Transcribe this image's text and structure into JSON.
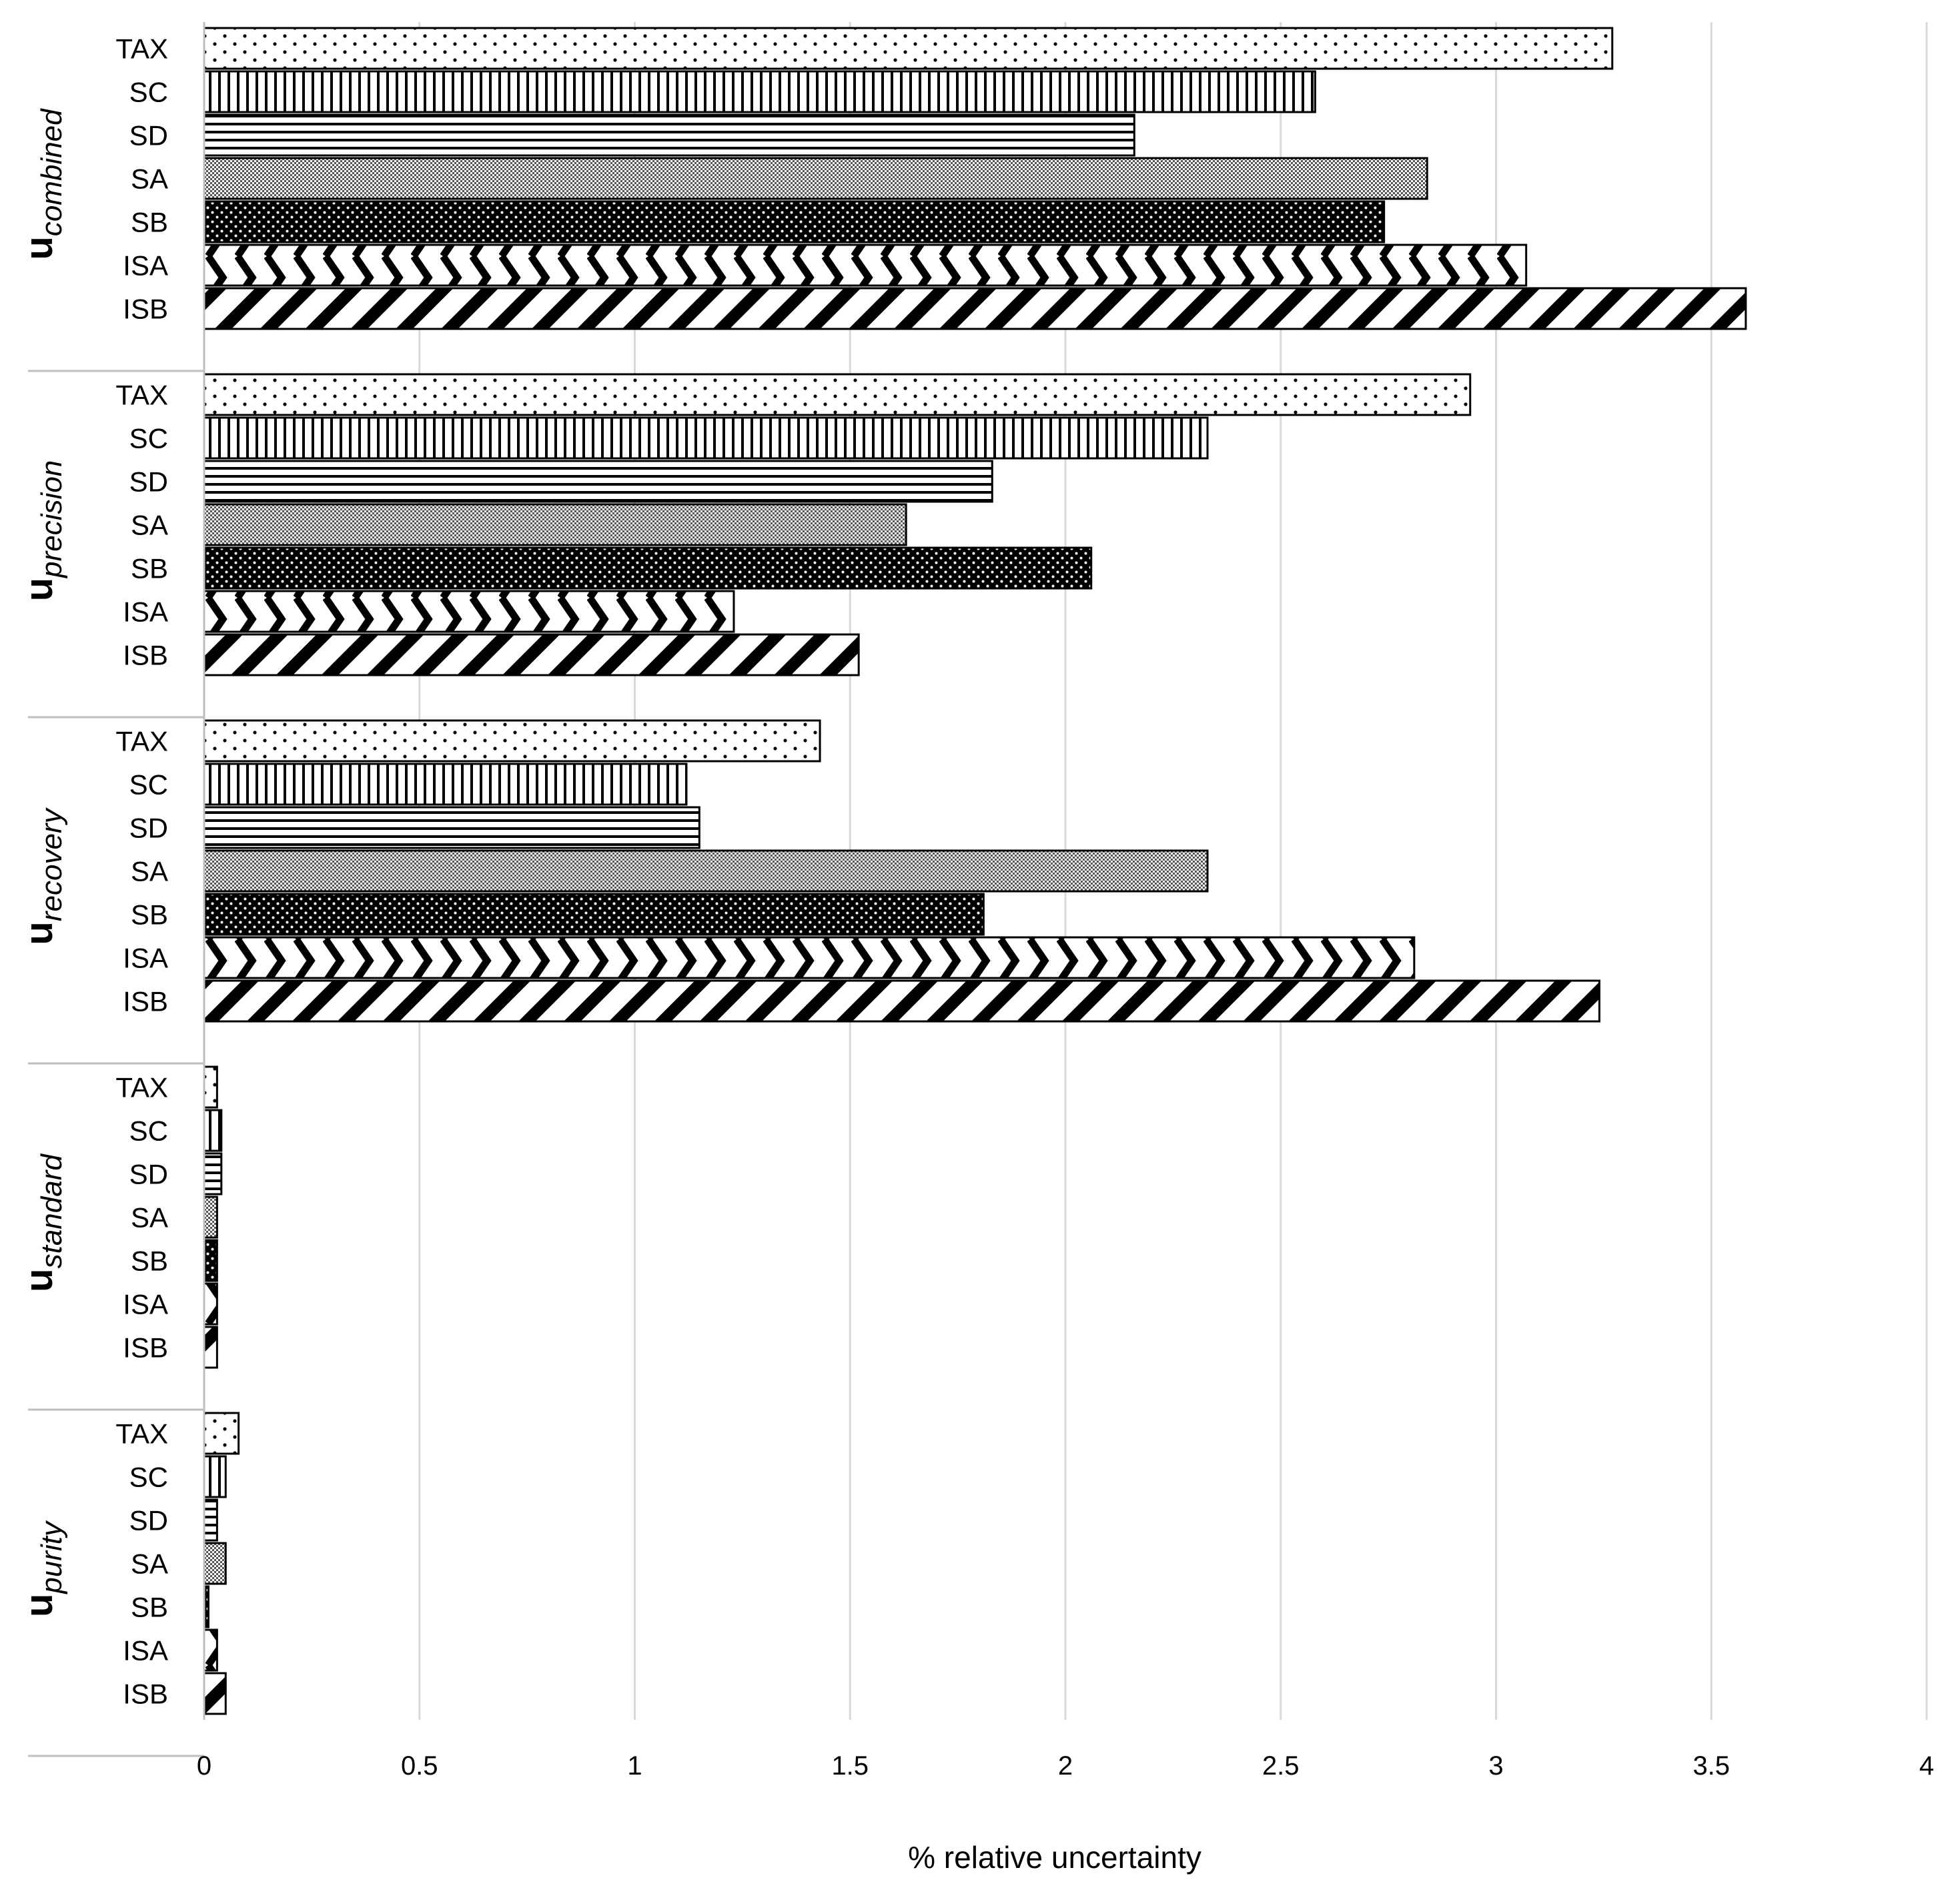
{
  "chart_data": {
    "type": "bar",
    "orientation": "horizontal",
    "title": "",
    "xlabel": "% relative uncertainty",
    "ylabel": "",
    "xlim": [
      0,
      4
    ],
    "xticks": [
      0,
      0.5,
      1,
      1.5,
      2,
      2.5,
      3,
      3.5,
      4
    ],
    "xtick_labels": [
      "0",
      "0.5",
      "1",
      "1.5",
      "2",
      "2.5",
      "3",
      "3.5",
      "4"
    ],
    "grid": "vertical",
    "categories": [
      "TAX",
      "SC",
      "SD",
      "SA",
      "SB",
      "ISA",
      "ISB"
    ],
    "groups": [
      {
        "name": "combined",
        "label_main": "u",
        "label_sub": "combined",
        "values": [
          3.27,
          2.58,
          2.16,
          2.84,
          2.74,
          3.07,
          3.58
        ]
      },
      {
        "name": "precision",
        "label_main": "u",
        "label_sub": "precision",
        "values": [
          2.94,
          2.33,
          1.83,
          1.63,
          2.06,
          1.23,
          1.52
        ]
      },
      {
        "name": "recovery",
        "label_main": "u",
        "label_sub": "recovery",
        "values": [
          1.43,
          1.12,
          1.15,
          2.33,
          1.81,
          2.81,
          3.24
        ]
      },
      {
        "name": "standard",
        "label_main": "u",
        "label_sub": "standard",
        "values": [
          0.03,
          0.04,
          0.04,
          0.03,
          0.03,
          0.03,
          0.03
        ]
      },
      {
        "name": "purity",
        "label_main": "u",
        "label_sub": "purity",
        "values": [
          0.08,
          0.05,
          0.03,
          0.05,
          0.01,
          0.03,
          0.05
        ]
      }
    ],
    "series_patterns": {
      "TAX": "sparse-dots",
      "SC": "vertical-lines",
      "SD": "horizontal-lines",
      "SA": "fine-checker",
      "SB": "dark-dots",
      "ISA": "chevrons",
      "ISB": "wide-diagonal"
    },
    "colors": {
      "bar_outline": "#000000",
      "grid": "#d9d9d9",
      "axis": "#bfbfbf"
    }
  }
}
